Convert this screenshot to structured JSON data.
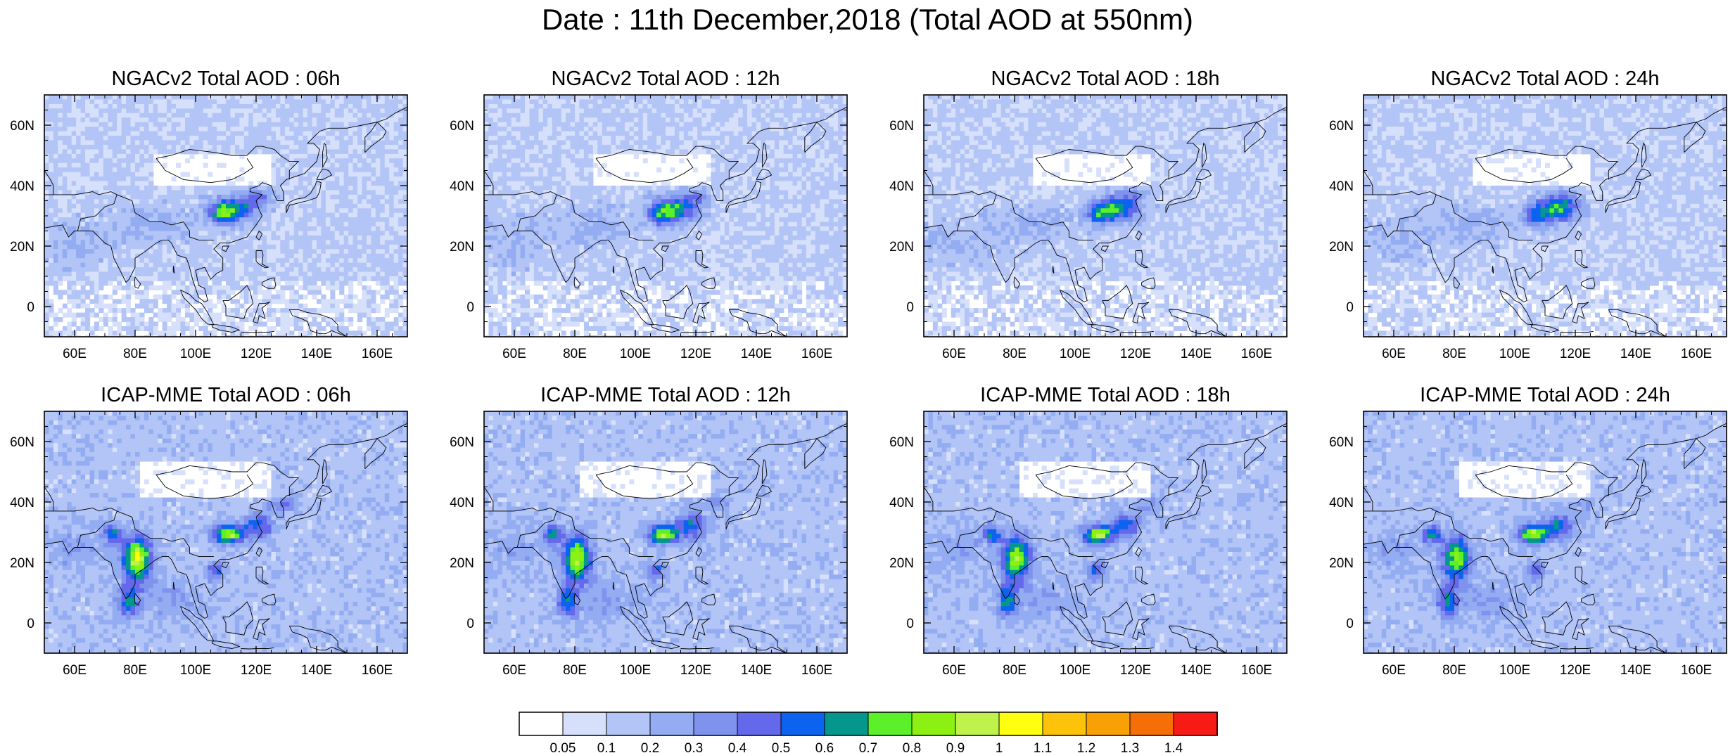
{
  "title": "Date : 11th December,2018 (Total AOD at 550nm)",
  "map_extent": {
    "lon": [
      50,
      170
    ],
    "lat": [
      -10,
      70
    ]
  },
  "lon_ticks": [
    {
      "value": 60,
      "label": "60E"
    },
    {
      "value": 80,
      "label": "80E"
    },
    {
      "value": 100,
      "label": "100E"
    },
    {
      "value": 120,
      "label": "120E"
    },
    {
      "value": 140,
      "label": "140E"
    },
    {
      "value": 160,
      "label": "160E"
    }
  ],
  "lat_ticks": [
    {
      "value": 60,
      "label": "60N"
    },
    {
      "value": 40,
      "label": "40N"
    },
    {
      "value": 20,
      "label": "20N"
    },
    {
      "value": 0,
      "label": "0"
    }
  ],
  "panels": [
    {
      "title": "NGACv2 Total AOD : 06h",
      "model": "NGACv2",
      "hour": "06h"
    },
    {
      "title": "NGACv2 Total AOD : 12h",
      "model": "NGACv2",
      "hour": "12h"
    },
    {
      "title": "NGACv2 Total AOD : 18h",
      "model": "NGACv2",
      "hour": "18h"
    },
    {
      "title": "NGACv2 Total AOD : 24h",
      "model": "NGACv2",
      "hour": "24h"
    },
    {
      "title": "ICAP-MME Total AOD : 06h",
      "model": "ICAP-MME",
      "hour": "06h"
    },
    {
      "title": "ICAP-MME Total AOD : 12h",
      "model": "ICAP-MME",
      "hour": "12h"
    },
    {
      "title": "ICAP-MME Total AOD : 18h",
      "model": "ICAP-MME",
      "hour": "18h"
    },
    {
      "title": "ICAP-MME Total AOD : 24h",
      "model": "ICAP-MME",
      "hour": "24h"
    }
  ],
  "colorbar": {
    "levels": [
      "0.05",
      "0.1",
      "0.2",
      "0.3",
      "0.4",
      "0.5",
      "0.6",
      "0.7",
      "0.8",
      "0.9",
      "1",
      "1.1",
      "1.2",
      "1.3",
      "1.4"
    ],
    "colors": [
      "#ffffff",
      "#d6e0fb",
      "#b3c4f6",
      "#93acf2",
      "#7f93ee",
      "#6468eb",
      "#0c63ef",
      "#05978d",
      "#5bf02a",
      "#8cf113",
      "#bff34c",
      "#ffff0f",
      "#fdc30a",
      "#f9a005",
      "#f56e06",
      "#f61b14"
    ]
  }
}
